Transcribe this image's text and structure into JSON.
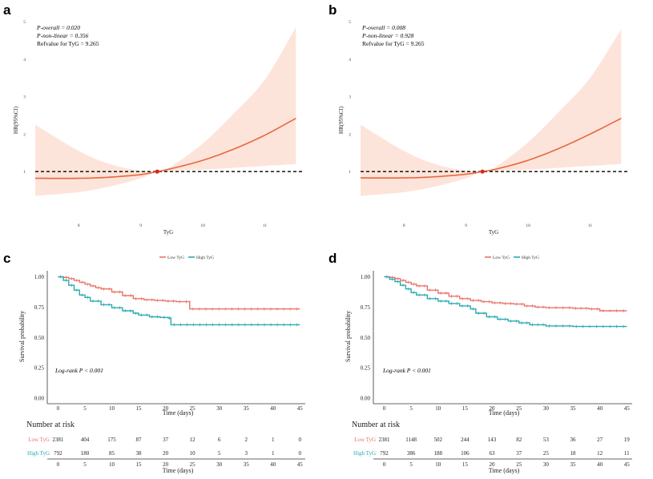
{
  "panels": [
    {
      "label": "a",
      "type": "rcs",
      "annotation": [
        "P-overall = 0.020",
        "P-non-linear = 0.356",
        "Refvalue for TyG = 9.265"
      ],
      "xlabel": "TyG",
      "ylabel": "HR(95%CI)"
    },
    {
      "label": "b",
      "type": "rcs",
      "annotation": [
        "P-overall = 0.008",
        "P-non-linear = 0.928",
        "Refvalue for TyG = 9.265"
      ],
      "xlabel": "TyG",
      "ylabel": "HR(95%CI)"
    },
    {
      "label": "c",
      "type": "km",
      "legend": [
        "Low TyG",
        "High TyG"
      ],
      "pvalue_text": "Log-rank P < 0.001",
      "xlabel": "Time (days)",
      "ylabel": "Survival probability",
      "risk_title": "Number at risk",
      "risk_rows": [
        {
          "name": "Low TyG",
          "values": [
            2381,
            404,
            175,
            87,
            37,
            12,
            6,
            2,
            1,
            0
          ]
        },
        {
          "name": "High TyG",
          "values": [
            792,
            180,
            85,
            38,
            20,
            10,
            5,
            3,
            1,
            0
          ]
        }
      ],
      "risk_xlabel": "Time (days)"
    },
    {
      "label": "d",
      "type": "km",
      "legend": [
        "Low TyG",
        "High TyG"
      ],
      "pvalue_text": "Log-rank P < 0.001",
      "xlabel": "Time (days)",
      "ylabel": "Survival probability",
      "risk_title": "Number at risk",
      "risk_rows": [
        {
          "name": "Low TyG",
          "values": [
            2381,
            1148,
            502,
            244,
            143,
            82,
            53,
            36,
            27,
            19
          ]
        },
        {
          "name": "High TyG",
          "values": [
            792,
            386,
            188,
            106,
            63,
            37,
            25,
            18,
            12,
            11
          ]
        }
      ],
      "risk_xlabel": "Time (days)"
    }
  ],
  "colors": {
    "low": "#e8736a",
    "high": "#2aa9ae",
    "ci": "#fde4da",
    "rcs_line": "#e8673e"
  },
  "chart_data": [
    {
      "type": "line",
      "panel": "a",
      "x_ticks": [
        8,
        9,
        10,
        11
      ],
      "y_ticks": [
        1,
        2,
        3,
        4,
        5
      ],
      "xlim": [
        7.3,
        11.6
      ],
      "ylim": [
        -0.3,
        5
      ],
      "reference": {
        "x": 9.265,
        "y": 1
      },
      "series": [
        {
          "role": "estimate",
          "x": [
            7.3,
            8.0,
            8.5,
            9.0,
            9.265,
            9.5,
            10.0,
            10.5,
            11.0,
            11.5
          ],
          "y": [
            0.82,
            0.82,
            0.85,
            0.92,
            1.0,
            1.08,
            1.3,
            1.6,
            1.97,
            2.42
          ]
        },
        {
          "role": "ci_upper",
          "x": [
            7.3,
            8.0,
            8.5,
            9.0,
            9.265,
            9.5,
            10.0,
            10.5,
            11.0,
            11.5
          ],
          "y": [
            2.25,
            1.55,
            1.2,
            1.02,
            1.0,
            1.15,
            1.75,
            2.55,
            3.45,
            4.85
          ]
        },
        {
          "role": "ci_lower",
          "x": [
            7.3,
            8.0,
            8.5,
            9.0,
            9.265,
            9.5,
            10.0,
            10.5,
            11.0,
            11.5
          ],
          "y": [
            0.35,
            0.45,
            0.6,
            0.82,
            1.0,
            1.02,
            1.05,
            1.1,
            1.15,
            1.2
          ]
        }
      ]
    },
    {
      "type": "line",
      "panel": "b",
      "x_ticks": [
        8,
        9,
        10,
        11
      ],
      "y_ticks": [
        1,
        2,
        3,
        4,
        5
      ],
      "xlim": [
        7.3,
        11.6
      ],
      "ylim": [
        -0.3,
        5
      ],
      "reference": {
        "x": 9.265,
        "y": 1
      },
      "series": [
        {
          "role": "estimate",
          "x": [
            7.3,
            8.0,
            8.5,
            9.0,
            9.265,
            9.5,
            10.0,
            10.5,
            11.0,
            11.5
          ],
          "y": [
            0.83,
            0.83,
            0.86,
            0.93,
            1.0,
            1.07,
            1.3,
            1.62,
            2.0,
            2.42
          ]
        },
        {
          "role": "ci_upper",
          "x": [
            7.3,
            8.0,
            8.5,
            9.0,
            9.265,
            9.5,
            10.0,
            10.5,
            11.0,
            11.5
          ],
          "y": [
            2.25,
            1.55,
            1.2,
            1.02,
            1.0,
            1.15,
            1.78,
            2.6,
            3.5,
            4.8
          ]
        },
        {
          "role": "ci_lower",
          "x": [
            7.3,
            8.0,
            8.5,
            9.0,
            9.265,
            9.5,
            10.0,
            10.5,
            11.0,
            11.5
          ],
          "y": [
            0.35,
            0.45,
            0.6,
            0.82,
            1.0,
            1.02,
            1.05,
            1.1,
            1.15,
            1.2
          ]
        }
      ]
    },
    {
      "type": "line",
      "panel": "c",
      "x_ticks": [
        0,
        5,
        10,
        15,
        20,
        25,
        30,
        35,
        40,
        45
      ],
      "y_ticks": [
        0.0,
        0.25,
        0.5,
        0.75,
        1.0
      ],
      "xlim": [
        -2,
        46
      ],
      "ylim": [
        -0.02,
        1.05
      ],
      "series": [
        {
          "name": "Low TyG",
          "x": [
            0,
            1,
            2,
            3,
            4,
            5,
            6,
            7,
            8,
            10,
            12,
            14,
            16,
            18,
            20,
            22,
            24.5,
            24.5,
            45
          ],
          "y": [
            1.0,
            0.995,
            0.985,
            0.97,
            0.955,
            0.94,
            0.925,
            0.91,
            0.9,
            0.875,
            0.845,
            0.82,
            0.81,
            0.805,
            0.8,
            0.795,
            0.79,
            0.735,
            0.735
          ]
        },
        {
          "name": "High TyG",
          "x": [
            0,
            1,
            2,
            3,
            4,
            5,
            6,
            8,
            10,
            12,
            14,
            15,
            17,
            19,
            20.5,
            21,
            45
          ],
          "y": [
            1.0,
            0.97,
            0.93,
            0.89,
            0.85,
            0.83,
            0.8,
            0.77,
            0.745,
            0.72,
            0.7,
            0.685,
            0.67,
            0.665,
            0.66,
            0.605,
            0.605
          ]
        }
      ]
    },
    {
      "type": "line",
      "panel": "d",
      "x_ticks": [
        0,
        5,
        10,
        15,
        20,
        25,
        30,
        35,
        40,
        45
      ],
      "y_ticks": [
        0.0,
        0.25,
        0.5,
        0.75,
        1.0
      ],
      "xlim": [
        -2,
        46
      ],
      "ylim": [
        -0.02,
        1.05
      ],
      "series": [
        {
          "name": "Low TyG",
          "x": [
            0,
            1,
            2,
            3,
            4,
            5,
            6,
            8,
            10,
            12,
            14,
            16,
            18,
            20,
            22,
            24,
            26,
            28,
            30,
            35,
            38,
            40,
            45
          ],
          "y": [
            1.0,
            0.995,
            0.985,
            0.97,
            0.955,
            0.94,
            0.925,
            0.89,
            0.865,
            0.84,
            0.82,
            0.805,
            0.795,
            0.785,
            0.78,
            0.775,
            0.76,
            0.75,
            0.745,
            0.74,
            0.735,
            0.72,
            0.72
          ]
        },
        {
          "name": "High TyG",
          "x": [
            0,
            1,
            2,
            3,
            4,
            5,
            6,
            8,
            10,
            12,
            14,
            16,
            17,
            19,
            21,
            23,
            25,
            27,
            30,
            35,
            40,
            45
          ],
          "y": [
            1.0,
            0.98,
            0.96,
            0.93,
            0.9,
            0.87,
            0.85,
            0.82,
            0.8,
            0.78,
            0.76,
            0.735,
            0.7,
            0.67,
            0.65,
            0.635,
            0.62,
            0.605,
            0.595,
            0.59,
            0.59,
            0.59
          ]
        }
      ]
    }
  ]
}
